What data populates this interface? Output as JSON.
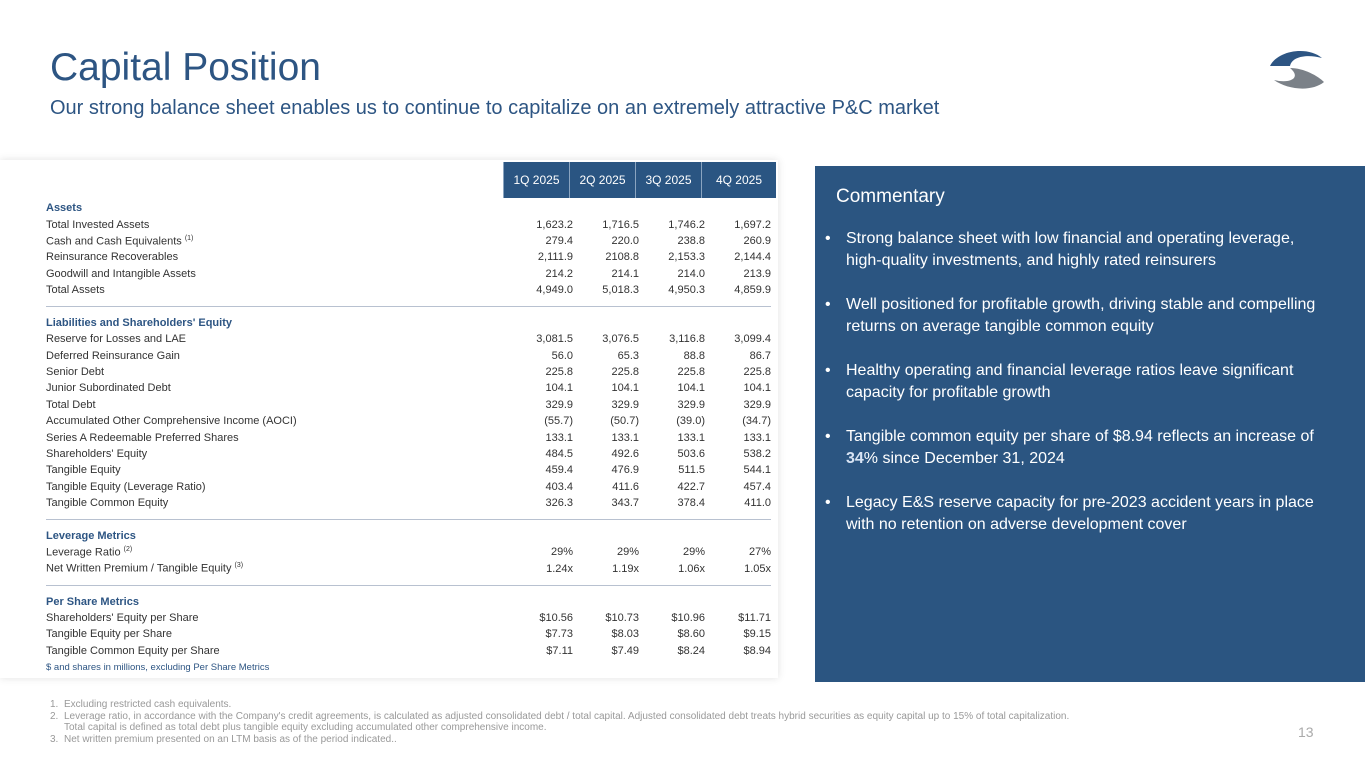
{
  "header": {
    "title": "Capital Position",
    "subtitle": "Our strong balance sheet enables us to continue to capitalize on an extremely attractive P&C market"
  },
  "table": {
    "columns": [
      "1Q 2025",
      "2Q 2025",
      "3Q 2025",
      "4Q 2025"
    ],
    "sections": [
      {
        "title": "Assets",
        "rows": [
          {
            "label": "Total Invested Assets",
            "values": [
              "1,623.2",
              "1,716.5",
              "1,746.2",
              "1,697.2"
            ]
          },
          {
            "label": "Cash and Cash Equivalents",
            "sup": "(1)",
            "values": [
              "279.4",
              "220.0",
              "238.8",
              "260.9"
            ]
          },
          {
            "label": "Reinsurance Recoverables",
            "values": [
              "2,111.9",
              "2108.8",
              "2,153.3",
              "2,144.4"
            ]
          },
          {
            "label": "Goodwill and Intangible Assets",
            "values": [
              "214.2",
              "214.1",
              "214.0",
              "213.9"
            ]
          },
          {
            "label": "Total Assets",
            "values": [
              "4,949.0",
              "5,018.3",
              "4,950.3",
              "4,859.9"
            ]
          }
        ]
      },
      {
        "title": "Liabilities and Shareholders' Equity",
        "rows": [
          {
            "label": "Reserve for Losses and LAE",
            "values": [
              "3,081.5",
              "3,076.5",
              "3,116.8",
              "3,099.4"
            ]
          },
          {
            "label": "Deferred Reinsurance Gain",
            "values": [
              "56.0",
              "65.3",
              "88.8",
              "86.7"
            ]
          },
          {
            "label": "Senior Debt",
            "values": [
              "225.8",
              "225.8",
              "225.8",
              "225.8"
            ]
          },
          {
            "label": "Junior Subordinated Debt",
            "values": [
              "104.1",
              "104.1",
              "104.1",
              "104.1"
            ]
          },
          {
            "label": "Total Debt",
            "values": [
              "329.9",
              "329.9",
              "329.9",
              "329.9"
            ]
          },
          {
            "label": "Accumulated Other Comprehensive Income (AOCI)",
            "values": [
              "(55.7)",
              "(50.7)",
              "(39.0)",
              "(34.7)"
            ]
          },
          {
            "label": "Series A Redeemable Preferred Shares",
            "values": [
              "133.1",
              "133.1",
              "133.1",
              "133.1"
            ]
          },
          {
            "label": "Shareholders' Equity",
            "values": [
              "484.5",
              "492.6",
              "503.6",
              "538.2"
            ]
          },
          {
            "label": "Tangible Equity",
            "values": [
              "459.4",
              "476.9",
              "511.5",
              "544.1"
            ]
          },
          {
            "label": "Tangible Equity (Leverage Ratio)",
            "values": [
              "403.4",
              "411.6",
              "422.7",
              "457.4"
            ]
          },
          {
            "label": "Tangible Common Equity",
            "values": [
              "326.3",
              "343.7",
              "378.4",
              "411.0"
            ]
          }
        ]
      },
      {
        "title": "Leverage Metrics",
        "rows": [
          {
            "label": "Leverage Ratio",
            "sup": "(2)",
            "values": [
              "29%",
              "29%",
              "29%",
              "27%"
            ]
          },
          {
            "label": "Net Written Premium / Tangible Equity",
            "sup": "(3)",
            "values": [
              "1.24x",
              "1.19x",
              "1.06x",
              "1.05x"
            ]
          }
        ]
      },
      {
        "title": "Per Share Metrics",
        "rows": [
          {
            "label": "Shareholders' Equity per Share",
            "values": [
              "$10.56",
              "$10.73",
              "$10.96",
              "$11.71"
            ]
          },
          {
            "label": "Tangible Equity per Share",
            "values": [
              "$7.73",
              "$8.03",
              "$8.60",
              "$9.15"
            ]
          },
          {
            "label": "Tangible Common Equity per Share",
            "values": [
              "$7.11",
              "$7.49",
              "$8.24",
              "$8.94"
            ]
          }
        ]
      }
    ],
    "note": "$ and shares in millions, excluding Per Share Metrics"
  },
  "commentary": {
    "title": "Commentary",
    "bullets": [
      {
        "text": "Strong balance sheet with low financial and operating leverage, high-quality investments, and highly rated reinsurers"
      },
      {
        "text": "Well positioned for profitable growth, driving stable and compelling returns on average tangible common equity"
      },
      {
        "text": "Healthy operating and financial leverage ratios leave significant capacity for profitable growth"
      },
      {
        "pre": "Tangible common equity per share of $8.94 reflects an increase of ",
        "hl": "34",
        "post": "% since December 31, 2024"
      },
      {
        "text": "Legacy E&S reserve capacity for pre-2023 accident years in place with no retention on adverse development cover"
      }
    ]
  },
  "footnotes": [
    {
      "n": "1.",
      "lines": [
        "Excluding restricted cash equivalents."
      ]
    },
    {
      "n": "2.",
      "lines": [
        "Leverage ratio, in accordance with the Company's credit agreements, is calculated as adjusted consolidated debt / total capital. Adjusted consolidated debt treats hybrid securities as equity capital up to 15% of total capitalization.",
        "Total capital is defined as total debt plus tangible equity excluding accumulated other comprehensive income."
      ]
    },
    {
      "n": "3.",
      "lines": [
        "Net written premium presented on an LTM basis as of the period indicated.."
      ]
    }
  ],
  "page_number": "13",
  "colors": {
    "brand": "#2b5581",
    "logo_gray": "#7b8188"
  }
}
